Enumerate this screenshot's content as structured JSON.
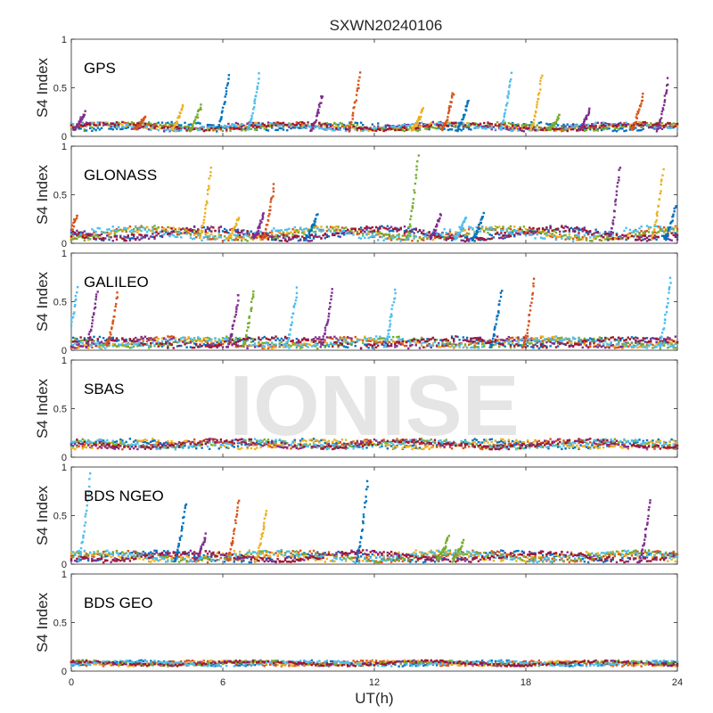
{
  "chart_data": {
    "type": "scatter",
    "title": "SXWN20240106",
    "xlabel": "UT(h)",
    "xlim": [
      0,
      24
    ],
    "xticks": [
      0,
      6,
      12,
      18,
      24
    ],
    "watermark": "IONISE",
    "series_colors": [
      "#0072BD",
      "#D95319",
      "#EDB120",
      "#7E2F8E",
      "#77AC30",
      "#4DBEEE",
      "#A2142F"
    ],
    "panels": [
      {
        "label": "GPS",
        "ylabel": "S4 Index",
        "ylim": [
          0,
          1
        ],
        "yticks": [
          0,
          0.5,
          1
        ],
        "yticklabels": [
          "0",
          "0.5",
          "1"
        ],
        "background": [
          0.07,
          0.13
        ],
        "spikes": [
          {
            "x": 0.4,
            "peak": 0.25,
            "c": 3
          },
          {
            "x": 2.8,
            "peak": 0.22,
            "c": 1
          },
          {
            "x": 4.3,
            "peak": 0.33,
            "c": 2
          },
          {
            "x": 5.0,
            "peak": 0.31,
            "c": 4
          },
          {
            "x": 6.1,
            "peak": 0.62,
            "c": 0
          },
          {
            "x": 7.3,
            "peak": 0.63,
            "c": 5
          },
          {
            "x": 9.8,
            "peak": 0.42,
            "c": 3
          },
          {
            "x": 11.3,
            "peak": 0.65,
            "c": 1
          },
          {
            "x": 13.8,
            "peak": 0.28,
            "c": 2
          },
          {
            "x": 15.0,
            "peak": 0.45,
            "c": 1
          },
          {
            "x": 15.6,
            "peak": 0.38,
            "c": 0
          },
          {
            "x": 17.3,
            "peak": 0.64,
            "c": 5
          },
          {
            "x": 18.5,
            "peak": 0.62,
            "c": 2
          },
          {
            "x": 19.2,
            "peak": 0.22,
            "c": 4
          },
          {
            "x": 20.4,
            "peak": 0.28,
            "c": 3
          },
          {
            "x": 22.5,
            "peak": 0.42,
            "c": 1
          },
          {
            "x": 23.5,
            "peak": 0.58,
            "c": 3
          }
        ]
      },
      {
        "label": "GLONASS",
        "ylabel": "S4 Index",
        "ylim": [
          0,
          1
        ],
        "yticks": [
          0,
          0.5,
          1
        ],
        "yticklabels": [
          "0",
          "0.5",
          "1"
        ],
        "background": [
          0.05,
          0.15
        ],
        "spikes": [
          {
            "x": 0.1,
            "peak": 0.3,
            "c": 1
          },
          {
            "x": 5.4,
            "peak": 0.78,
            "c": 2
          },
          {
            "x": 6.5,
            "peak": 0.28,
            "c": 2
          },
          {
            "x": 7.5,
            "peak": 0.3,
            "c": 3
          },
          {
            "x": 7.9,
            "peak": 0.6,
            "c": 1
          },
          {
            "x": 9.6,
            "peak": 0.3,
            "c": 0
          },
          {
            "x": 13.6,
            "peak": 0.9,
            "c": 4
          },
          {
            "x": 14.5,
            "peak": 0.3,
            "c": 3
          },
          {
            "x": 15.5,
            "peak": 0.28,
            "c": 5
          },
          {
            "x": 16.2,
            "peak": 0.3,
            "c": 0
          },
          {
            "x": 21.6,
            "peak": 0.78,
            "c": 3
          },
          {
            "x": 23.3,
            "peak": 0.75,
            "c": 2
          },
          {
            "x": 23.8,
            "peak": 0.38,
            "c": 0
          }
        ]
      },
      {
        "label": "GALILEO",
        "ylabel": "S4 Index",
        "ylim": [
          0,
          1
        ],
        "yticks": [
          0,
          0.5,
          1
        ],
        "yticklabels": [
          "0",
          "0.5",
          "1"
        ],
        "background": [
          0.04,
          0.12
        ],
        "spikes": [
          {
            "x": 0.1,
            "peak": 0.65,
            "c": 5
          },
          {
            "x": 0.9,
            "peak": 0.62,
            "c": 3
          },
          {
            "x": 1.7,
            "peak": 0.58,
            "c": 1
          },
          {
            "x": 6.5,
            "peak": 0.58,
            "c": 3
          },
          {
            "x": 7.1,
            "peak": 0.62,
            "c": 4
          },
          {
            "x": 8.8,
            "peak": 0.63,
            "c": 5
          },
          {
            "x": 10.2,
            "peak": 0.62,
            "c": 3
          },
          {
            "x": 12.7,
            "peak": 0.62,
            "c": 5
          },
          {
            "x": 16.9,
            "peak": 0.62,
            "c": 0
          },
          {
            "x": 18.2,
            "peak": 0.72,
            "c": 1
          },
          {
            "x": 23.6,
            "peak": 0.75,
            "c": 5
          }
        ]
      },
      {
        "label": "SBAS",
        "ylabel": "S4 Index",
        "ylim": [
          0,
          1
        ],
        "yticks": [
          0,
          0.5,
          1
        ],
        "yticklabels": [
          "0",
          "0.5",
          "1"
        ],
        "background": [
          0.1,
          0.17
        ],
        "spikes": []
      },
      {
        "label": "BDS NGEO",
        "ylabel": "S4 Index",
        "ylim": [
          0,
          1
        ],
        "yticks": [
          0,
          0.5,
          1
        ],
        "yticklabels": [
          "0",
          "0.5",
          "1"
        ],
        "background": [
          0.04,
          0.12
        ],
        "spikes": [
          {
            "x": 0.6,
            "peak": 0.92,
            "c": 5
          },
          {
            "x": 4.4,
            "peak": 0.63,
            "c": 0
          },
          {
            "x": 5.2,
            "peak": 0.3,
            "c": 3
          },
          {
            "x": 6.5,
            "peak": 0.65,
            "c": 1
          },
          {
            "x": 7.6,
            "peak": 0.55,
            "c": 2
          },
          {
            "x": 11.6,
            "peak": 0.85,
            "c": 0
          },
          {
            "x": 14.8,
            "peak": 0.28,
            "c": 4
          },
          {
            "x": 15.4,
            "peak": 0.25,
            "c": 4
          },
          {
            "x": 22.8,
            "peak": 0.65,
            "c": 3
          }
        ]
      },
      {
        "label": "BDS GEO",
        "ylabel": "S4 Index",
        "ylim": [
          0,
          1
        ],
        "yticks": [
          0,
          0.5,
          1
        ],
        "yticklabels": [
          "0",
          "0.5",
          "1"
        ],
        "background": [
          0.06,
          0.1
        ],
        "spikes": []
      }
    ]
  }
}
